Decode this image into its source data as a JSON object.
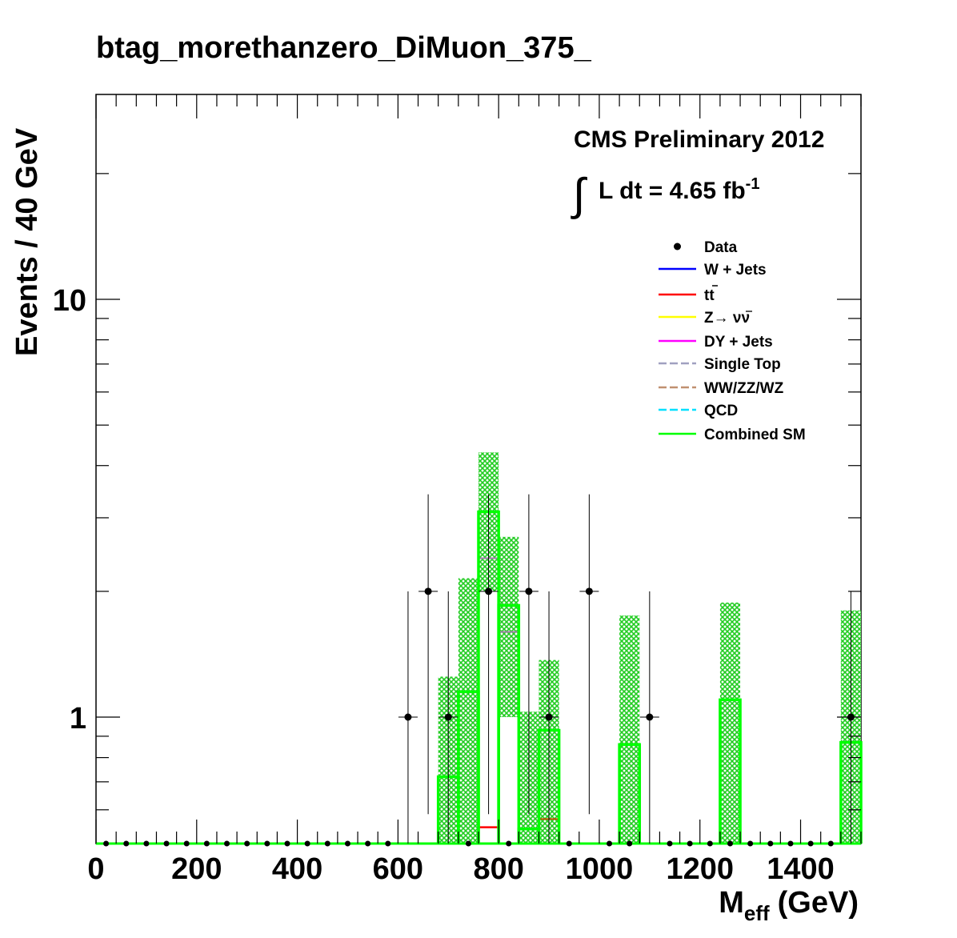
{
  "chart_data": {
    "type": "histogram",
    "title": "btag_morethanzero_DiMuon_375_",
    "xlabel_main": "M",
    "xlabel_sub": "eff",
    "xlabel_unit": "(GeV)",
    "ylabel": "Events / 40 GeV",
    "xlim": [
      0,
      1520
    ],
    "ylim": [
      0.5,
      15
    ],
    "y_scale": "log",
    "x_ticks": [
      0,
      200,
      400,
      600,
      800,
      1000,
      1200,
      1400
    ],
    "x_tick_labels": [
      "0",
      "200",
      "400",
      "600",
      "800",
      "1000",
      "1200",
      "1400"
    ],
    "y_tick_labels": [
      {
        "value": 1,
        "label": "1"
      },
      {
        "value": 10,
        "label": "10"
      }
    ],
    "annotation_line1": "CMS Preliminary 2012",
    "annotation_lumi": "L dt = 4.65 fb",
    "annotation_lumi_exp": "-1",
    "bin_width": 40,
    "data": {
      "name": "Data",
      "x": [
        20,
        60,
        100,
        140,
        180,
        220,
        260,
        300,
        340,
        380,
        420,
        460,
        500,
        540,
        580,
        620,
        660,
        700,
        740,
        780,
        820,
        860,
        900,
        940,
        980,
        1020,
        1060,
        1100,
        1140,
        1180,
        1220,
        1260,
        1300,
        1340,
        1380,
        1420,
        1460,
        1500
      ],
      "y": [
        0,
        0,
        0,
        0,
        0,
        0,
        0,
        0,
        0,
        0,
        0,
        0,
        0,
        0,
        0,
        1,
        2,
        1,
        0,
        2,
        0,
        2,
        1,
        0,
        2,
        0,
        0,
        1,
        0,
        0,
        0,
        0,
        0,
        0,
        0,
        0,
        0,
        1
      ]
    },
    "combined_sm": {
      "name": "Combined SM",
      "bins": [
        {
          "x0": 680,
          "x1": 720,
          "y": 0.72,
          "err_lo": 0.5,
          "err_hi": 1.25
        },
        {
          "x0": 720,
          "x1": 760,
          "y": 1.15,
          "err_lo": 0.5,
          "err_hi": 2.15
        },
        {
          "x0": 760,
          "x1": 800,
          "y": 3.1,
          "err_lo": 2.0,
          "err_hi": 4.3
        },
        {
          "x0": 800,
          "x1": 840,
          "y": 1.85,
          "err_lo": 1.0,
          "err_hi": 2.7
        },
        {
          "x0": 840,
          "x1": 880,
          "y": 0.54,
          "err_lo": 0.5,
          "err_hi": 1.03
        },
        {
          "x0": 880,
          "x1": 920,
          "y": 0.93,
          "err_lo": 0.5,
          "err_hi": 1.37
        },
        {
          "x0": 1040,
          "x1": 1080,
          "y": 0.86,
          "err_lo": 0.5,
          "err_hi": 1.75
        },
        {
          "x0": 1240,
          "x1": 1280,
          "y": 1.1,
          "err_lo": 0.5,
          "err_hi": 1.88
        },
        {
          "x0": 1480,
          "x1": 1520,
          "y": 0.87,
          "err_lo": 0.5,
          "err_hi": 1.8
        }
      ]
    },
    "single_top": {
      "name": "Single Top",
      "bins": [
        {
          "x0": 720,
          "x1": 760,
          "y": 1.15
        },
        {
          "x0": 760,
          "x1": 800,
          "y": 2.4
        },
        {
          "x0": 800,
          "x1": 840,
          "y": 1.6
        }
      ]
    },
    "ttbar": {
      "name": "tt",
      "bins": [
        {
          "x0": 760,
          "x1": 800,
          "y": 0.545
        }
      ]
    },
    "dibosons": {
      "name": "WW/ZZ/WZ",
      "bins": [
        {
          "x0": 880,
          "x1": 920,
          "y": 0.57
        }
      ]
    },
    "legend": {
      "position": "top-right",
      "entries": [
        {
          "label": "Data",
          "style": "marker",
          "color": "#000000"
        },
        {
          "label": "W + Jets",
          "style": "line",
          "color": "#0000ff"
        },
        {
          "label": "tt",
          "label_bar": true,
          "style": "line",
          "color": "#ff0000"
        },
        {
          "label": "Z→ νν",
          "label_bar_nu": true,
          "style": "line",
          "color": "#ffff00"
        },
        {
          "label": "DY + Jets",
          "style": "line",
          "color": "#ff00ff"
        },
        {
          "label": "Single Top",
          "style": "dash",
          "color": "#a0a0c0"
        },
        {
          "label": "WW/ZZ/WZ",
          "style": "dash",
          "color": "#c09070"
        },
        {
          "label": "QCD",
          "style": "dash",
          "color": "#00e0ff"
        },
        {
          "label": "Combined SM",
          "style": "line",
          "color": "#00ff00"
        }
      ]
    }
  }
}
